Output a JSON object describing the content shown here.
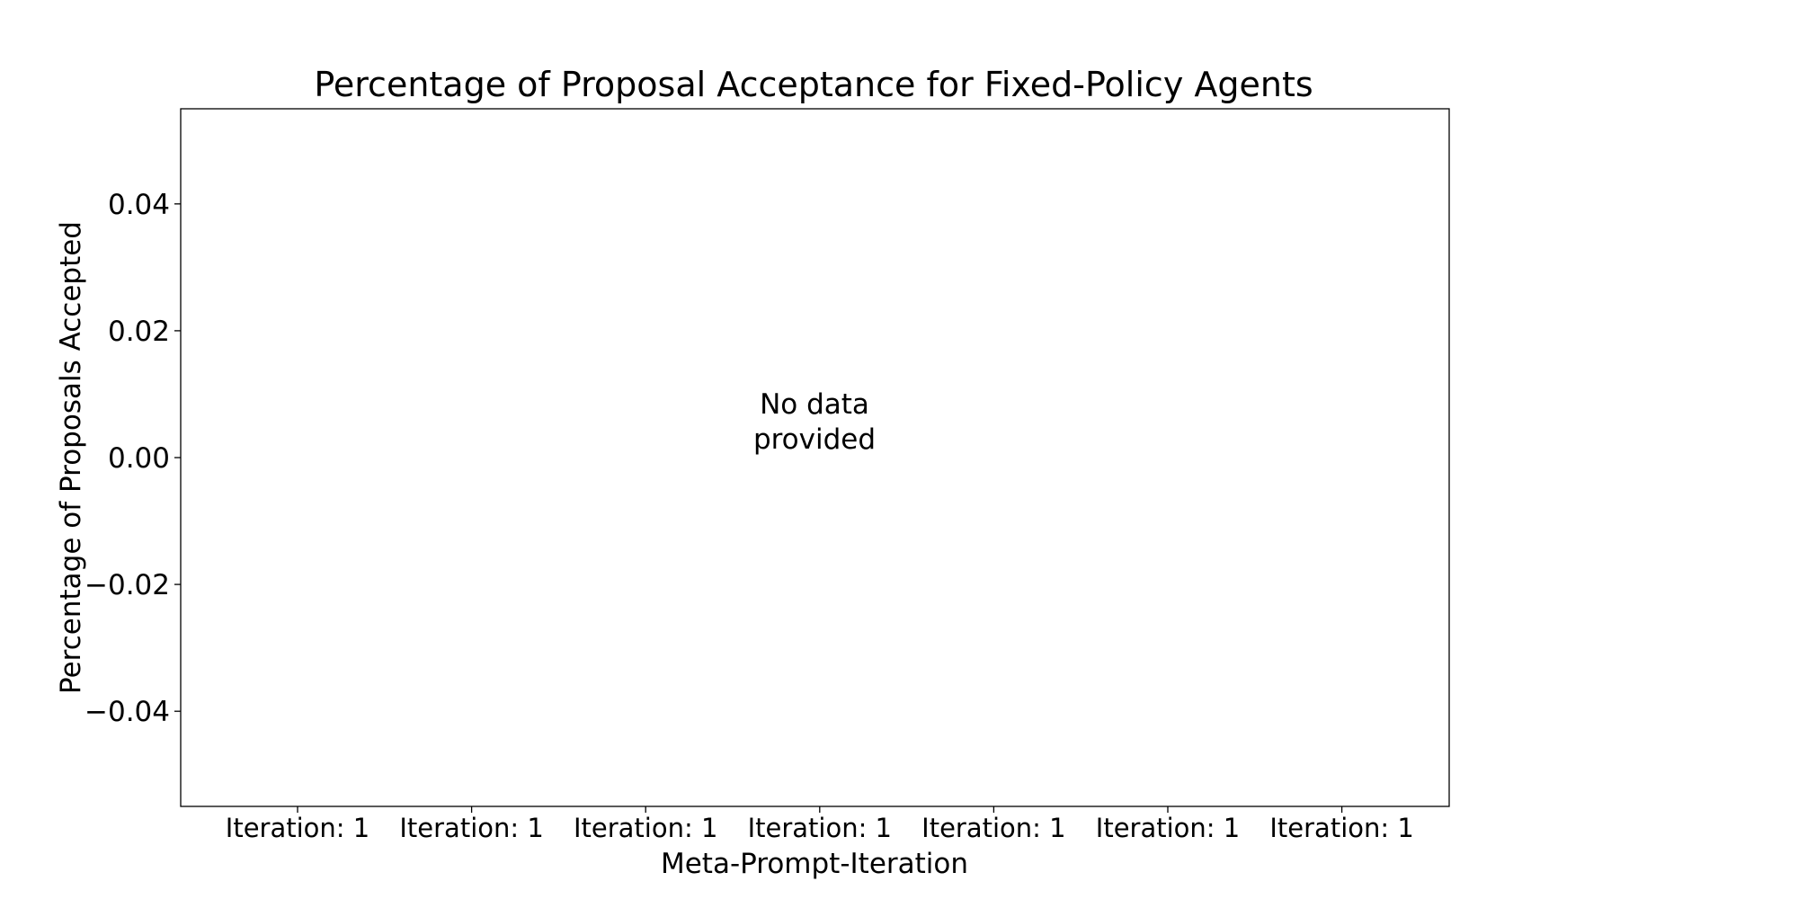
{
  "chart_data": {
    "type": "bar",
    "title": "Percentage of Proposal Acceptance for Fixed-Policy Agents",
    "xlabel": "Meta-Prompt-Iteration",
    "ylabel": "Percentage of Proposals Accepted",
    "categories": [
      "Iteration: 1",
      "Iteration: 1",
      "Iteration: 1",
      "Iteration: 1",
      "Iteration: 1",
      "Iteration: 1",
      "Iteration: 1"
    ],
    "series": [],
    "ylim": [
      -0.055,
      0.055
    ],
    "yticks": [
      0.04,
      0.02,
      0.0,
      -0.02,
      -0.04
    ],
    "ytick_labels": [
      "0.04",
      "0.02",
      "0.00",
      "−0.02",
      "−0.04"
    ],
    "grid": false,
    "annotation": {
      "line1": "No data",
      "line2": "provided"
    }
  }
}
